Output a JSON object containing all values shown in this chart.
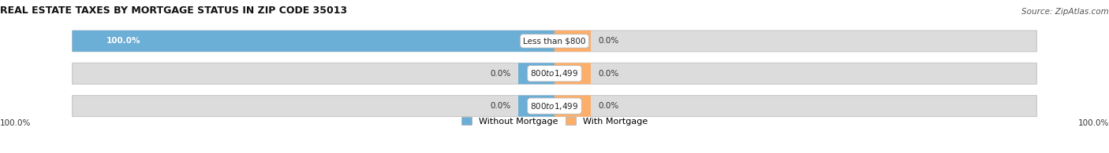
{
  "title": "REAL ESTATE TAXES BY MORTGAGE STATUS IN ZIP CODE 35013",
  "source": "Source: ZipAtlas.com",
  "rows": [
    {
      "label": "Less than $800",
      "without_mortgage": 100.0,
      "with_mortgage": 0.0
    },
    {
      "label": "$800 to $1,499",
      "without_mortgage": 0.0,
      "with_mortgage": 0.0
    },
    {
      "label": "$800 to $1,499",
      "without_mortgage": 0.0,
      "with_mortgage": 0.0
    }
  ],
  "color_without": "#6BAED6",
  "color_with": "#FDAE6B",
  "bar_bg": "#DCDCDC",
  "bar_bg_edge": "#C8C8C8",
  "figsize": [
    14.06,
    1.95
  ],
  "dpi": 100,
  "legend_without": "Without Mortgage",
  "legend_with": "With Mortgage",
  "left_label": "100.0%",
  "right_label": "100.0%",
  "title_fontsize": 9,
  "source_fontsize": 7.5,
  "label_fontsize": 7.5,
  "pct_fontsize": 7.5,
  "legend_fontsize": 8
}
